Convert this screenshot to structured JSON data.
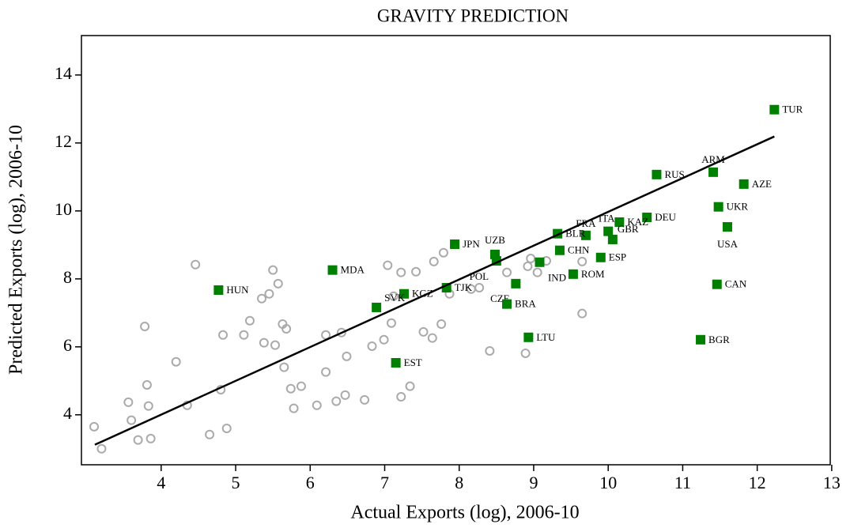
{
  "chart_data": {
    "type": "scatter",
    "title": "GRAVITY PREDICTION",
    "x_label": "Actual Exports (log), 2006-10",
    "y_label": "Predicted Exports (log), 2006-10",
    "xlim": [
      2.93,
      12.98
    ],
    "ylim": [
      2.53,
      15.16
    ],
    "xticks": [
      4,
      5,
      6,
      7,
      8,
      9,
      10,
      11,
      12,
      13
    ],
    "yticks": [
      4,
      6,
      8,
      10,
      12,
      14
    ],
    "series": [
      {
        "marker": "hollow-circle",
        "color": "#aaaaaa",
        "x": [
          3.1,
          3.2,
          3.56,
          3.6,
          3.69,
          3.78,
          3.81,
          3.83,
          3.86,
          4.2,
          4.35,
          4.46,
          4.65,
          4.8,
          4.83,
          4.88,
          5.11,
          5.19,
          5.35,
          5.38,
          5.45,
          5.5,
          5.53,
          5.57,
          5.63,
          5.65,
          5.68,
          5.74,
          5.78,
          5.88,
          6.09,
          6.21,
          6.21,
          6.35,
          6.42,
          6.47,
          6.49,
          6.73,
          6.83,
          6.99,
          7.04,
          7.09,
          7.22,
          7.22,
          7.34,
          7.42,
          7.52,
          7.64,
          7.66,
          7.76,
          7.79,
          7.87,
          8.16,
          8.27,
          8.41,
          8.64,
          8.89,
          8.96,
          9.05,
          9.17,
          9.65,
          9.65,
          7.12,
          8.92
        ],
        "values": [
          3.65,
          3.0,
          4.37,
          3.84,
          3.26,
          6.6,
          4.88,
          4.26,
          3.3,
          5.56,
          4.28,
          8.42,
          3.42,
          4.74,
          6.35,
          3.6,
          6.35,
          6.77,
          7.42,
          6.12,
          7.56,
          8.26,
          6.05,
          7.86,
          6.67,
          5.4,
          6.53,
          4.77,
          4.19,
          4.84,
          4.28,
          6.35,
          5.26,
          4.4,
          6.42,
          4.58,
          5.72,
          4.44,
          6.02,
          6.21,
          8.4,
          6.7,
          8.19,
          4.53,
          4.84,
          8.21,
          6.44,
          6.26,
          8.51,
          6.67,
          8.77,
          7.56,
          7.7,
          7.74,
          5.88,
          8.19,
          5.81,
          8.6,
          8.19,
          8.53,
          6.98,
          8.51,
          7.49,
          8.37
        ]
      },
      {
        "marker": "square",
        "color": "#008000",
        "labels": [
          "TUR",
          "ARM",
          "RUS",
          "AZE",
          "UKR",
          "DEU",
          "KAZ",
          "USA",
          "ITA",
          "FRA",
          "GBR",
          "BLR",
          "JPN",
          "UZB",
          "POL",
          "CHN",
          "ESP",
          "MDA",
          "IND",
          "ROM",
          "HUN",
          "CAN",
          "TJK",
          "CZE",
          "KGZ",
          "SVK",
          "BRA",
          "LTU",
          "BGR",
          "EST"
        ],
        "x": [
          12.23,
          11.41,
          10.65,
          11.82,
          11.48,
          10.52,
          10.15,
          11.6,
          10.0,
          9.7,
          10.06,
          9.32,
          7.94,
          8.48,
          8.5,
          9.35,
          9.9,
          6.3,
          9.08,
          9.53,
          4.77,
          11.46,
          7.83,
          8.76,
          7.26,
          6.89,
          8.64,
          8.93,
          11.24,
          7.15
        ],
        "values": [
          12.98,
          11.14,
          11.07,
          10.79,
          10.12,
          9.81,
          9.67,
          9.53,
          9.4,
          9.28,
          9.16,
          9.33,
          9.02,
          8.72,
          8.53,
          8.84,
          8.63,
          8.26,
          8.49,
          8.14,
          7.67,
          7.84,
          7.74,
          7.86,
          7.56,
          7.16,
          7.26,
          6.28,
          6.21,
          5.53
        ]
      },
      {
        "marker": "line",
        "color": "#000000",
        "x": [
          3.11,
          12.23
        ],
        "values": [
          3.12,
          12.19
        ]
      }
    ]
  }
}
